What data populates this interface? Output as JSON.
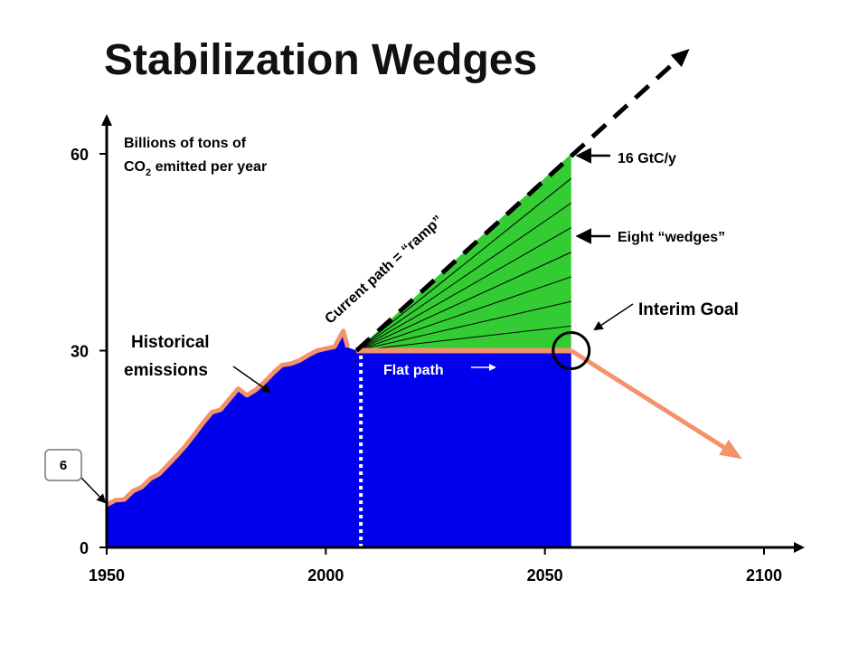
{
  "chart_data": {
    "type": "area",
    "title": "Stabilization Wedges",
    "ylabel_line1": "Billions of tons of",
    "ylabel_line2_prefix": "CO",
    "ylabel_line2_sub": "2",
    "ylabel_line2_suffix": " emitted per year",
    "xlim": [
      1950,
      2100
    ],
    "ylim": [
      0,
      60
    ],
    "x_ticks": [
      1950,
      2000,
      2050,
      2100
    ],
    "y_ticks": [
      0,
      30,
      60
    ],
    "historical": {
      "name": "Historical emissions",
      "x": [
        1950,
        1952,
        1954,
        1956,
        1958,
        1960,
        1962,
        1964,
        1966,
        1968,
        1970,
        1972,
        1974,
        1976,
        1978,
        1980,
        1982,
        1984,
        1986,
        1988,
        1990,
        1992,
        1994,
        1996,
        1998,
        2000,
        2002,
        2004,
        2005
      ],
      "y": [
        6.5,
        7.2,
        7.3,
        8.6,
        9.2,
        10.5,
        11.2,
        12.6,
        14.0,
        15.5,
        17.2,
        19.0,
        20.6,
        21.0,
        22.6,
        24.2,
        23.2,
        24.0,
        25.2,
        26.6,
        27.8,
        28.0,
        28.5,
        29.3,
        30.0,
        30.3,
        30.6,
        33.0,
        30.5
      ]
    },
    "current_path_label": "Current path = “ramp”",
    "current_path": {
      "x": [
        2007,
        2083
      ],
      "y": [
        30,
        76
      ]
    },
    "flat_path_label": "Flat path",
    "flat_path": {
      "x": [
        2007,
        2056
      ],
      "y": [
        30,
        30
      ]
    },
    "post_goal": {
      "x": [
        2056,
        2095
      ],
      "y": [
        30,
        13.5
      ]
    },
    "interim_goal": {
      "x": 2056,
      "y": 30,
      "label": "Interim Goal"
    },
    "wedges": {
      "count": 8,
      "start_x": 2007,
      "end_x": 2056,
      "base_y": 30,
      "top_y": 60,
      "label": "Eight “wedges”",
      "top_label": "16 GtC/y"
    },
    "divider_year": 2008,
    "start_value_label": "6",
    "colors": {
      "blue_area": "#0000ee",
      "green_wedge": "#33cc33",
      "flat_line": "#f4926c",
      "ramp": "#000000",
      "divider": "#ffffff"
    }
  }
}
